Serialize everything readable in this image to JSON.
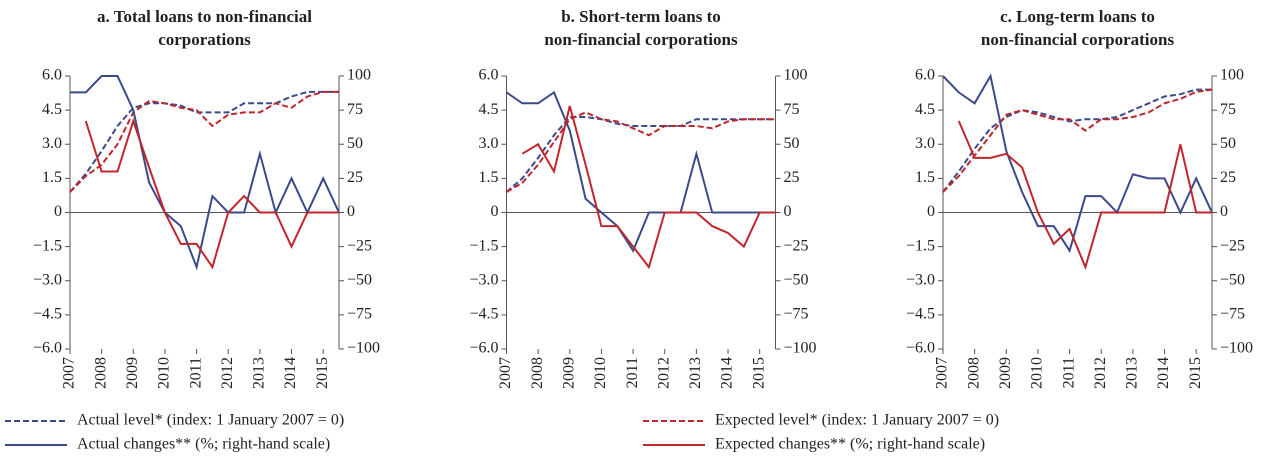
{
  "chart_data": [
    {
      "type": "line",
      "title": [
        "a. Total loans to non-financial",
        "corporations"
      ],
      "x": [
        2007,
        2007.5,
        2008,
        2008.5,
        2009,
        2009.5,
        2010,
        2010.5,
        2011,
        2011.5,
        2012,
        2012.5,
        2013,
        2013.5,
        2014,
        2014.5,
        2015,
        2015.5
      ],
      "xlim": [
        2007,
        2015.5
      ],
      "xticks": [
        2007,
        2008,
        2009,
        2010,
        2011,
        2012,
        2013,
        2014,
        2015
      ],
      "ylim": [
        -6,
        6
      ],
      "yticks": [
        {
          "value": 6,
          "label": "6.0"
        },
        {
          "value": 4.5,
          "label": "4.5"
        },
        {
          "value": 3,
          "label": "3.0"
        },
        {
          "value": 1.5,
          "label": "1.5"
        },
        0,
        {
          "value": -1.5,
          "label": "−1.5"
        },
        {
          "value": -3,
          "label": "−3.0"
        },
        {
          "value": -4.5,
          "label": "−4.5"
        },
        {
          "value": -6,
          "label": "−6.0"
        }
      ],
      "y2lim": [
        -100,
        100
      ],
      "y2ticks": [
        100,
        75,
        50,
        25,
        0,
        {
          "value": -25,
          "label": "−25"
        },
        {
          "value": -50,
          "label": "−50"
        },
        {
          "value": -75,
          "label": "−75"
        },
        {
          "value": -100,
          "label": "−100"
        }
      ],
      "series": [
        {
          "color": "#3b4a8a",
          "dash": true,
          "values": [
            0.9,
            1.7,
            2.7,
            3.8,
            4.6,
            4.8,
            4.8,
            4.7,
            4.4,
            4.4,
            4.4,
            4.8,
            4.8,
            4.8,
            5.1,
            5.3,
            5.3,
            5.3
          ]
        },
        {
          "color": "#c0262d",
          "dash": true,
          "values": [
            0.9,
            1.6,
            2.1,
            3.0,
            4.4,
            4.9,
            4.8,
            4.6,
            4.5,
            3.8,
            4.3,
            4.4,
            4.4,
            4.8,
            4.6,
            5.1,
            5.3,
            5.3
          ]
        },
        {
          "color": "#3b4a8a",
          "dash": false,
          "axis": "y2",
          "values": [
            88,
            88,
            100,
            100,
            75,
            22,
            0,
            -10,
            -40,
            12,
            0,
            0,
            43,
            0,
            25,
            0,
            25,
            0
          ]
        },
        {
          "color": "#c0262d",
          "dash": false,
          "axis": "y2",
          "values": [
            null,
            67,
            30,
            30,
            67,
            33,
            0,
            -23,
            -23,
            -40,
            0,
            12,
            0,
            0,
            -25,
            0,
            0,
            0
          ]
        }
      ]
    },
    {
      "type": "line",
      "title": [
        "b. Short-term loans to",
        "non-financial corporations"
      ],
      "x": [
        2007,
        2007.5,
        2008,
        2008.5,
        2009,
        2009.5,
        2010,
        2010.5,
        2011,
        2011.5,
        2012,
        2012.5,
        2013,
        2013.5,
        2014,
        2014.5,
        2015,
        2015.5
      ],
      "xlim": [
        2007,
        2015.5
      ],
      "xticks": [
        2007,
        2008,
        2009,
        2010,
        2011,
        2012,
        2013,
        2014,
        2015
      ],
      "ylim": [
        -6,
        6
      ],
      "yticks": [
        {
          "value": 6,
          "label": "6.0"
        },
        {
          "value": 4.5,
          "label": "4.5"
        },
        {
          "value": 3,
          "label": "3.0"
        },
        {
          "value": 1.5,
          "label": "1.5"
        },
        0,
        {
          "value": -1.5,
          "label": "−1.5"
        },
        {
          "value": -3,
          "label": "−3.0"
        },
        {
          "value": -4.5,
          "label": "−4.5"
        },
        {
          "value": -6,
          "label": "−6.0"
        }
      ],
      "y2lim": [
        -100,
        100
      ],
      "y2ticks": [
        100,
        75,
        50,
        25,
        0,
        {
          "value": -25,
          "label": "−25"
        },
        {
          "value": -50,
          "label": "−50"
        },
        {
          "value": -75,
          "label": "−75"
        },
        {
          "value": -100,
          "label": "−100"
        }
      ],
      "series": [
        {
          "color": "#3b4a8a",
          "dash": true,
          "values": [
            0.9,
            1.5,
            2.4,
            3.4,
            4.2,
            4.2,
            4.1,
            3.9,
            3.8,
            3.8,
            3.8,
            3.8,
            4.1,
            4.1,
            4.1,
            4.1,
            4.1,
            4.1
          ]
        },
        {
          "color": "#c0262d",
          "dash": true,
          "values": [
            0.9,
            1.3,
            2.1,
            3.1,
            4.1,
            4.4,
            4.1,
            4.0,
            3.7,
            3.4,
            3.8,
            3.8,
            3.8,
            3.7,
            4.0,
            4.1,
            4.1,
            4.1
          ]
        },
        {
          "color": "#3b4a8a",
          "dash": false,
          "axis": "y2",
          "values": [
            88,
            80,
            80,
            88,
            60,
            10,
            0,
            -10,
            -28,
            0,
            0,
            0,
            43,
            0,
            0,
            0,
            0,
            0
          ]
        },
        {
          "color": "#c0262d",
          "dash": false,
          "axis": "y2",
          "values": [
            null,
            43,
            50,
            30,
            78,
            35,
            -10,
            -10,
            -25,
            -40,
            0,
            0,
            0,
            -10,
            -15,
            -25,
            0,
            0
          ]
        }
      ]
    },
    {
      "type": "line",
      "title": [
        "c. Long-term loans to",
        "non-financial corporations"
      ],
      "x": [
        2007,
        2007.5,
        2008,
        2008.5,
        2009,
        2009.5,
        2010,
        2010.5,
        2011,
        2011.5,
        2012,
        2012.5,
        2013,
        2013.5,
        2014,
        2014.5,
        2015,
        2015.5
      ],
      "xlim": [
        2007,
        2015.5
      ],
      "xticks": [
        2007,
        2008,
        2009,
        2010,
        2011,
        2012,
        2013,
        2014,
        2015
      ],
      "ylim": [
        -6,
        6
      ],
      "yticks": [
        {
          "value": 6,
          "label": "6.0"
        },
        {
          "value": 4.5,
          "label": "4.5"
        },
        {
          "value": 3,
          "label": "3.0"
        },
        {
          "value": 1.5,
          "label": "1.5"
        },
        0,
        {
          "value": -1.5,
          "label": "−1.5"
        },
        {
          "value": -3,
          "label": "−3.0"
        },
        {
          "value": -4.5,
          "label": "−4.5"
        },
        {
          "value": -6,
          "label": "−6.0"
        }
      ],
      "y2lim": [
        -100,
        100
      ],
      "y2ticks": [
        100,
        75,
        50,
        25,
        0,
        {
          "value": -25,
          "label": "−25"
        },
        {
          "value": -50,
          "label": "−50"
        },
        {
          "value": -75,
          "label": "−75"
        },
        {
          "value": -100,
          "label": "−100"
        }
      ],
      "series": [
        {
          "color": "#3b4a8a",
          "dash": true,
          "values": [
            0.9,
            1.8,
            2.8,
            3.7,
            4.2,
            4.5,
            4.4,
            4.2,
            4.0,
            4.1,
            4.1,
            4.2,
            4.5,
            4.8,
            5.1,
            5.2,
            5.4,
            5.4
          ]
        },
        {
          "color": "#c0262d",
          "dash": true,
          "values": [
            0.9,
            1.6,
            2.5,
            3.4,
            4.3,
            4.5,
            4.3,
            4.1,
            4.1,
            3.6,
            4.1,
            4.1,
            4.2,
            4.4,
            4.8,
            5.0,
            5.3,
            5.4
          ]
        },
        {
          "color": "#3b4a8a",
          "dash": false,
          "axis": "y2",
          "values": [
            100,
            88,
            80,
            100,
            45,
            15,
            -10,
            -10,
            -28,
            12,
            12,
            0,
            28,
            25,
            25,
            0,
            25,
            0
          ]
        },
        {
          "color": "#c0262d",
          "dash": false,
          "axis": "y2",
          "values": [
            null,
            67,
            40,
            40,
            43,
            33,
            0,
            -23,
            -12,
            -40,
            0,
            0,
            0,
            0,
            0,
            50,
            0,
            0
          ]
        }
      ]
    }
  ],
  "legend": [
    {
      "name": "Actual level* (index: 1 January 2007 = 0)",
      "color": "#3b4a8a",
      "dash": true
    },
    {
      "name": "Actual changes** (%; right-hand scale)",
      "color": "#3b4a8a",
      "dash": false
    },
    {
      "name": "Expected level* (index: 1 January 2007 = 0)",
      "color": "#c0262d",
      "dash": true
    },
    {
      "name": "Expected changes** (%; right-hand scale)",
      "color": "#c0262d",
      "dash": false
    }
  ]
}
